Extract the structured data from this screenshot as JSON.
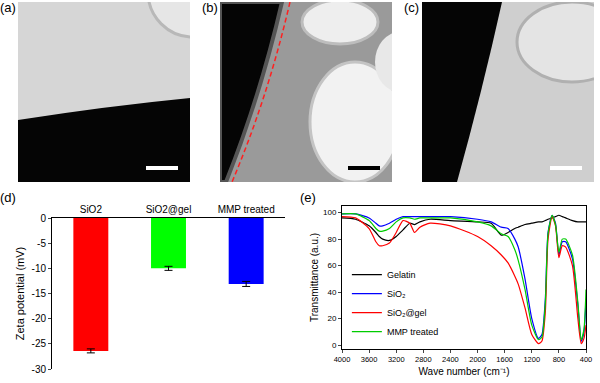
{
  "images": [
    {
      "label": "(a)"
    },
    {
      "label": "(b)"
    },
    {
      "label": "(c)"
    }
  ],
  "chart_data": [
    {
      "type": "bar",
      "annotations": [
        "(d)"
      ],
      "y_label": "Zeta potential (mV)",
      "categories": [
        "SiO2",
        "SiO2@gel",
        "MMP treated"
      ],
      "values": [
        -26.4,
        -10.0,
        -13.1
      ],
      "errors": [
        0.4,
        0.4,
        0.5
      ],
      "colors": [
        "#ff0000",
        "#00ff00",
        "#0000ff"
      ],
      "ylim": [
        -30,
        0
      ],
      "yticks": [
        -30,
        -25,
        -20,
        -15,
        -10,
        -5,
        0
      ],
      "grid": false
    },
    {
      "type": "line",
      "annotations": [
        "(e)"
      ],
      "x_label": "Wave number (cm⁻¹)",
      "y_label": "Transmittance (a.u.)",
      "x": [
        4000,
        3800,
        3600,
        3500,
        3450,
        3400,
        3300,
        3200,
        3100,
        3000,
        2930,
        2850,
        2700,
        2400,
        2000,
        1800,
        1650,
        1550,
        1450,
        1400,
        1300,
        1200,
        1100,
        1050,
        1000,
        960,
        900,
        850,
        800,
        750,
        700,
        600,
        520,
        470,
        430,
        400
      ],
      "series": [
        {
          "name": "Gelatin",
          "color": "#000000",
          "values": [
            96,
            95,
            90,
            85,
            82,
            80,
            79,
            82,
            87,
            92,
            91,
            93,
            95,
            94,
            93,
            92,
            83,
            85,
            88,
            89,
            91,
            92,
            93,
            93,
            94,
            95,
            96,
            97,
            98,
            97,
            96,
            94,
            93,
            93,
            93,
            93
          ]
        },
        {
          "name": "SiO₂",
          "color": "#0000ff",
          "values": [
            99,
            99,
            96,
            92,
            90,
            90,
            92,
            95,
            97,
            97,
            97,
            97,
            97,
            97,
            95,
            93,
            89,
            88,
            80,
            74,
            50,
            20,
            5,
            8,
            35,
            85,
            98,
            92,
            68,
            78,
            78,
            65,
            30,
            3,
            10,
            35
          ]
        },
        {
          "name": "SiO₂@gel",
          "color": "#ff0000",
          "values": [
            97,
            96,
            88,
            78,
            75,
            75,
            77,
            85,
            94,
            92,
            85,
            89,
            92,
            90,
            82,
            75,
            68,
            62,
            52,
            46,
            28,
            8,
            1,
            3,
            25,
            80,
            97,
            90,
            66,
            75,
            74,
            60,
            20,
            1,
            5,
            15
          ]
        },
        {
          "name": "MMP treated",
          "color": "#00cc00",
          "values": [
            99,
            99,
            94,
            88,
            86,
            86,
            88,
            93,
            96,
            96,
            95,
            96,
            96,
            96,
            93,
            90,
            84,
            82,
            72,
            64,
            42,
            15,
            4,
            6,
            32,
            84,
            98,
            91,
            70,
            80,
            80,
            68,
            32,
            4,
            12,
            42
          ]
        }
      ],
      "xlim": [
        4000,
        400
      ],
      "xticks": [
        4000,
        3600,
        3200,
        2800,
        2400,
        2000,
        1600,
        1200,
        800,
        400
      ],
      "ylim": [
        -3,
        105
      ],
      "yticks": [
        0,
        20,
        40,
        60,
        80,
        100
      ],
      "legend": "lower left",
      "line_style": "solid",
      "grid": false
    }
  ]
}
